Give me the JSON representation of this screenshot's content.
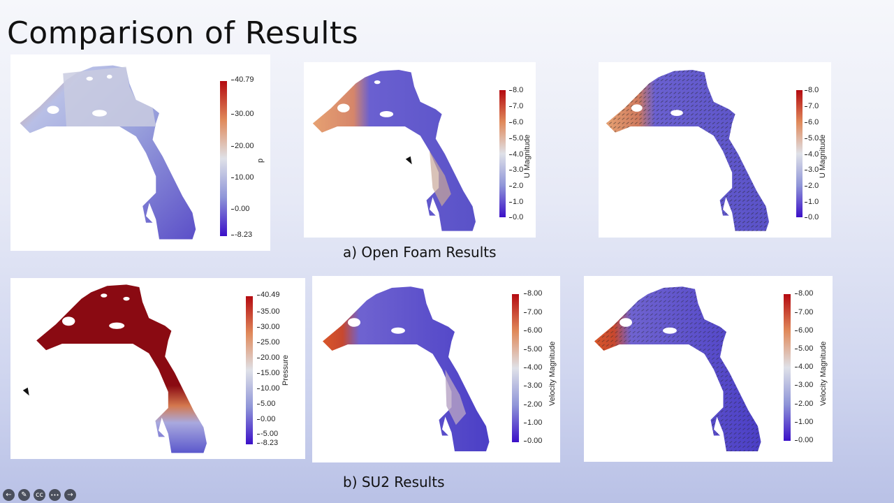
{
  "slide": {
    "title": "Comparison of Results"
  },
  "captions": {
    "openfoam": "a) Open Foam Results",
    "su2": "b) SU2 Results"
  },
  "colors": {
    "low": "#3b10c8",
    "mid": "#dfe1e8",
    "high": "#b40a10"
  },
  "toolbar": {
    "items": [
      {
        "name": "previous-slide",
        "glyph": "←"
      },
      {
        "name": "pen-tool",
        "glyph": "✎"
      },
      {
        "name": "captions",
        "glyph": "cc"
      },
      {
        "name": "more-options",
        "glyph": "•••"
      },
      {
        "name": "next-slide",
        "glyph": "→"
      }
    ]
  },
  "panels": [
    {
      "id": "of-pressure",
      "colorbar": {
        "title": "p",
        "ticks": [
          "40.79",
          "30.00",
          "20.00",
          "10.00",
          "0.00",
          "-8.23"
        ]
      }
    },
    {
      "id": "of-velocity",
      "colorbar": {
        "title": "U Magnitude",
        "ticks": [
          "8.0",
          "7.0",
          "6.0",
          "5.0",
          "4.0",
          "3.0",
          "2.0",
          "1.0",
          "0.0"
        ]
      }
    },
    {
      "id": "of-velocity-vectors",
      "colorbar": {
        "title": "U Magnitude",
        "ticks": [
          "8.0",
          "7.0",
          "6.0",
          "5.0",
          "4.0",
          "3.0",
          "2.0",
          "1.0",
          "0.0"
        ]
      }
    },
    {
      "id": "su2-pressure",
      "colorbar": {
        "title": "Pressure",
        "ticks": [
          "40.49",
          "35.00",
          "30.00",
          "25.00",
          "20.00",
          "15.00",
          "10.00",
          "5.00",
          "0.00",
          "-5.00",
          "-8.23"
        ]
      }
    },
    {
      "id": "su2-velocity",
      "colorbar": {
        "title": "Velocity Magnitude",
        "ticks": [
          "8.00",
          "7.00",
          "6.00",
          "5.00",
          "4.00",
          "3.00",
          "2.00",
          "1.00",
          "0.00"
        ]
      }
    },
    {
      "id": "su2-velocity-vectors",
      "colorbar": {
        "title": "Velocity Magnitude",
        "ticks": [
          "8.00",
          "7.00",
          "6.00",
          "5.00",
          "4.00",
          "3.00",
          "2.00",
          "1.00",
          "0.00"
        ]
      }
    }
  ]
}
